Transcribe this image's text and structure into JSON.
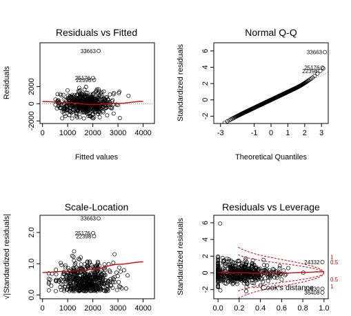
{
  "figure": {
    "background": "#ffffff",
    "point_color": "#000000",
    "smooth_color": "#cc0000"
  },
  "chart_data": [
    {
      "type": "scatter",
      "title": "Residuals vs Fitted",
      "xlabel": "Fitted values",
      "ylabel": "Residuals",
      "xlim": [
        -100,
        4450
      ],
      "ylim": [
        -2300,
        7100
      ],
      "xticks": [
        0,
        1000,
        2000,
        3000,
        4000
      ],
      "xtick_labels": [
        "0",
        "1000",
        "2000",
        "3000",
        "4000"
      ],
      "yticks": [
        -2000,
        0,
        2000
      ],
      "ytick_labels": [
        "-2000",
        "0",
        "2000"
      ],
      "cloud": {
        "n": 520,
        "x_center": 1700,
        "x_sd": 560,
        "x_min": 250,
        "x_max": 4200,
        "y_center": 0,
        "y_sd": 700,
        "y_min": -1700,
        "y_max": 2500
      },
      "labeled_points": [
        {
          "label": "33663",
          "x": 2230,
          "y": 6150
        },
        {
          "label": "25176",
          "x": 2010,
          "y": 3000
        },
        {
          "label": "22398",
          "x": 2050,
          "y": 2780
        }
      ],
      "reference_line": {
        "y": 0,
        "style": "dotted"
      },
      "smooth": {
        "x": [
          0,
          1000,
          2000,
          3000,
          4000
        ],
        "y": [
          260,
          120,
          -100,
          40,
          280
        ]
      }
    },
    {
      "type": "scatter",
      "title": "Normal Q-Q",
      "xlabel": "Theoretical Quantiles",
      "ylabel": "Standardized residuals",
      "xlim": [
        -3.4,
        3.4
      ],
      "ylim": [
        -2.9,
        7.0
      ],
      "xticks": [
        -3,
        -1,
        0,
        1,
        2,
        3
      ],
      "xtick_labels": [
        "-3",
        "-1",
        "0",
        "1",
        "2",
        "3"
      ],
      "yticks": [
        -2,
        0,
        2,
        4,
        6
      ],
      "ytick_labels": [
        "-2",
        "0",
        "2",
        "4",
        "6"
      ],
      "qq": {
        "n": 520,
        "slope": 0.98,
        "upper_tail": 0.28,
        "lower_tail": 0.06
      },
      "labeled_points": [
        {
          "label": "33663",
          "x": 3.2,
          "y": 5.85
        },
        {
          "label": "25176",
          "x": 3.05,
          "y": 3.95
        },
        {
          "label": "22398",
          "x": 2.93,
          "y": 3.55
        }
      ],
      "reference_line": {
        "slope": 1.0,
        "intercept": 0,
        "style": "dotted"
      }
    },
    {
      "type": "scatter",
      "title": "Scale-Location",
      "xlabel": "",
      "ylabel": "√|Standardized residuals|",
      "xlim": [
        -100,
        4450
      ],
      "ylim": [
        -0.12,
        2.55
      ],
      "xticks": [
        0,
        1000,
        2000,
        3000,
        4000
      ],
      "xtick_labels": [
        "0",
        "1000",
        "2000",
        "3000",
        "4000"
      ],
      "yticks": [
        0.0,
        1.0,
        2.0
      ],
      "ytick_labels": [
        "0.0",
        "1.0",
        "2.0"
      ],
      "cloud": {
        "n": 520,
        "x_center": 1700,
        "x_sd": 560,
        "x_min": 250,
        "x_max": 4200,
        "y_center": 0.75,
        "y_sd": 0.38,
        "y_min": 0.05,
        "y_max": 1.8
      },
      "labeled_points": [
        {
          "label": "33663",
          "x": 2230,
          "y": 2.45
        },
        {
          "label": "25176",
          "x": 2010,
          "y": 1.98
        },
        {
          "label": "22398",
          "x": 2050,
          "y": 1.88
        }
      ],
      "smooth": {
        "x": [
          0,
          1000,
          2000,
          3000,
          4000
        ],
        "y": [
          0.72,
          0.76,
          0.82,
          0.98,
          1.06
        ]
      }
    },
    {
      "type": "scatter",
      "title": "Residuals vs Leverage",
      "xlabel": "",
      "ylabel": "Standardized residuals",
      "xlim": [
        -0.04,
        1.04
      ],
      "ylim": [
        -3.1,
        6.9
      ],
      "xticks": [
        0.0,
        0.2,
        0.4,
        0.6,
        0.8,
        1.0
      ],
      "xtick_labels": [
        "0.0",
        "0.2",
        "0.4",
        "0.6",
        "0.8",
        "1.0"
      ],
      "yticks": [
        -2,
        0,
        2,
        4,
        6
      ],
      "ytick_labels": [
        "-2",
        "0",
        "2",
        "4",
        "6"
      ],
      "cloud": {
        "n": 520,
        "x_center": 0.22,
        "x_sd": 0.17,
        "x_min": 0.0,
        "x_max": 0.98,
        "y_center": 0,
        "y_sd": 0.85,
        "y_min": -2.2,
        "y_max": 3.0
      },
      "labeled_points": [
        {
          "label": "24332",
          "x": 0.985,
          "y": 1.3
        },
        {
          "label": "21630",
          "x": 0.985,
          "y": -1.9
        },
        {
          "label": "36408",
          "x": 0.985,
          "y": -2.35
        }
      ],
      "extra_points": [
        {
          "x": 0.02,
          "y": 5.9
        }
      ],
      "cooks_distance": {
        "label": "Cook's distance",
        "levels": [
          "1",
          "0.5",
          "0.5",
          "1"
        ],
        "values": [
          1,
          0.5
        ]
      },
      "smooth": {
        "x": [
          0,
          0.2,
          0.4,
          0.6,
          0.8,
          1.0
        ],
        "y": [
          0.05,
          0.0,
          -0.05,
          -0.05,
          0.05,
          0.15
        ]
      }
    }
  ]
}
